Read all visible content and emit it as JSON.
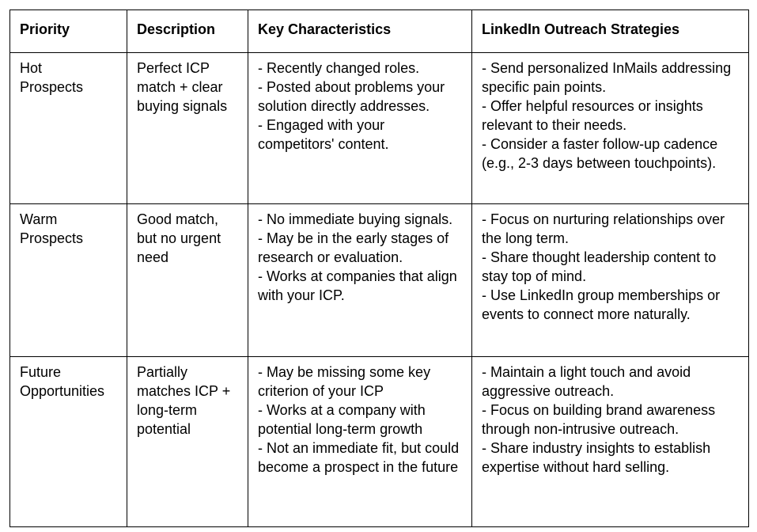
{
  "headers": [
    "Priority",
    "Description",
    "Key Characteristics",
    "LinkedIn Outreach Strategies"
  ],
  "rows": [
    {
      "priority": "Hot Prospects",
      "description": "Perfect ICP match + clear buying signals",
      "characteristics": [
        "- Recently changed roles.",
        "- Posted about problems your solution directly addresses.",
        "- Engaged with your competitors' content."
      ],
      "strategies": [
        "- Send personalized InMails addressing specific pain points.",
        "- Offer helpful resources or insights relevant to their needs.",
        "- Consider a faster follow-up cadence (e.g., 2-3 days between touchpoints)."
      ]
    },
    {
      "priority": "Warm Prospects",
      "description": "Good match, but no urgent need",
      "characteristics": [
        "- No immediate buying signals.",
        "- May be in the early stages of research or evaluation.",
        "- Works at companies that align with your ICP."
      ],
      "strategies": [
        "- Focus on nurturing relationships over the long term.",
        "- Share thought leadership content to stay top of mind.",
        "- Use LinkedIn group memberships or events to connect more naturally."
      ]
    },
    {
      "priority": "Future Opportunities",
      "description": "Partially matches ICP + long-term potential",
      "characteristics": [
        "- May be missing some key criterion of your ICP",
        "- Works at a company with potential long-term growth",
        "- Not an immediate fit, but could become a prospect in the future"
      ],
      "strategies": [
        "- Maintain a light touch and avoid aggressive outreach.",
        "- Focus on building brand awareness through non-intrusive outreach.",
        "- Share industry insights to establish expertise without hard selling."
      ]
    }
  ]
}
